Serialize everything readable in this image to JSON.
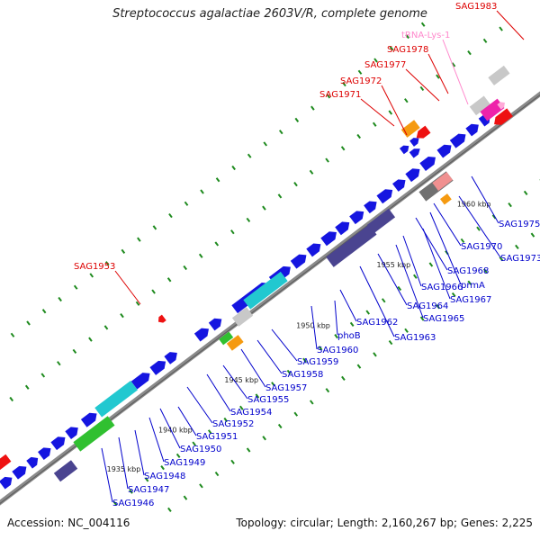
{
  "title": "Streptococcus agalactiae 2603V/R, complete genome",
  "footer": {
    "accession": "Accession: NC_004116",
    "summary": "Topology: circular; Length: 2,160,267 bp; Genes: 2,225"
  },
  "colors": {
    "background": "#ffffff",
    "backbone": "#8a8a8a",
    "gene_blue": "#1515e0",
    "gene_red": "#ee1111",
    "gene_cyan": "#22c8d0",
    "gene_green": "#30c030",
    "gene_orange": "#f59a10",
    "gene_gray": "#c8c8c8",
    "gene_darkgray": "#707070",
    "gene_navy": "#4a4490",
    "gene_magenta": "#ee22aa",
    "gene_pink": "#f09090",
    "gene_lightpink": "#ffaad8",
    "dot_green": "#1e8a1e",
    "label_blue": "#0000cc",
    "label_red": "#dd0000",
    "label_pink": "#ff88cc",
    "tick_text": "#222222"
  },
  "ruler_labels": [
    {
      "id": "1935",
      "text": "1935 kbp"
    },
    {
      "id": "1940",
      "text": "1940 kbp"
    },
    {
      "id": "1945",
      "text": "1945 kbp"
    },
    {
      "id": "1950",
      "text": "1950 kbp"
    },
    {
      "id": "1955",
      "text": "1955 kbp"
    },
    {
      "id": "1960",
      "text": "1960 kbp"
    }
  ],
  "gene_labels_forward": [
    {
      "id": "sag1946",
      "text": "SAG1946"
    },
    {
      "id": "sag1947",
      "text": "SAG1947"
    },
    {
      "id": "sag1948",
      "text": "SAG1948"
    },
    {
      "id": "sag1949",
      "text": "SAG1949"
    },
    {
      "id": "sag1950",
      "text": "SAG1950"
    },
    {
      "id": "sag1951",
      "text": "SAG1951"
    },
    {
      "id": "sag1952",
      "text": "SAG1952"
    },
    {
      "id": "sag1954",
      "text": "SAG1954"
    },
    {
      "id": "sag1955",
      "text": "SAG1955"
    },
    {
      "id": "sag1957",
      "text": "SAG1957"
    },
    {
      "id": "sag1958",
      "text": "SAG1958"
    },
    {
      "id": "sag1959",
      "text": "SAG1959"
    },
    {
      "id": "sag1960",
      "text": "SAG1960"
    },
    {
      "id": "phob",
      "text": "phoB"
    },
    {
      "id": "sag1962",
      "text": "SAG1962"
    },
    {
      "id": "sag1963",
      "text": "SAG1963"
    },
    {
      "id": "sag1964",
      "text": "SAG1964"
    },
    {
      "id": "sag1965",
      "text": "SAG1965"
    },
    {
      "id": "sag1966",
      "text": "SAG1966"
    },
    {
      "id": "sag1967",
      "text": "SAG1967"
    },
    {
      "id": "prma",
      "text": "prmA"
    },
    {
      "id": "sag1968",
      "text": "SAG1968"
    },
    {
      "id": "sag1970",
      "text": "SAG1970"
    },
    {
      "id": "sag1973",
      "text": "SAG1973"
    },
    {
      "id": "sag1975",
      "text": "SAG1975"
    }
  ],
  "gene_labels_reverse": [
    {
      "id": "sag1953",
      "text": "SAG1953"
    },
    {
      "id": "sag1971",
      "text": "SAG1971"
    },
    {
      "id": "sag1972",
      "text": "SAG1972"
    },
    {
      "id": "sag1977",
      "text": "SAG1977"
    },
    {
      "id": "sag1978",
      "text": "SAG1978"
    },
    {
      "id": "trna",
      "text": "tRNA-Lys-1"
    },
    {
      "id": "sag1983",
      "text": "SAG1983"
    }
  ]
}
